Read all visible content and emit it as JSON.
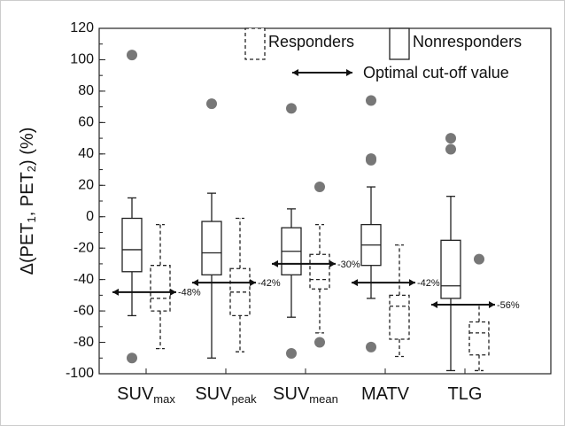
{
  "chart_data": {
    "type": "box",
    "y_label": {
      "parts": [
        "Δ(PET",
        "1",
        ", PET",
        "2",
        ") (%)"
      ],
      "subscript": [
        false,
        true,
        false,
        true,
        false
      ]
    },
    "categories": [
      {
        "text": "SUV",
        "sub": "max"
      },
      {
        "text": "SUV",
        "sub": "peak"
      },
      {
        "text": "SUV",
        "sub": "mean"
      },
      {
        "text": "MATV",
        "sub": null
      },
      {
        "text": "TLG",
        "sub": null
      }
    ],
    "series": [
      {
        "name": "Responders",
        "style": "dashed",
        "color": "#222222",
        "boxes": [
          {
            "whisker_low": -84,
            "q1": -60,
            "median": -52,
            "q3": -31,
            "whisker_high": -5
          },
          {
            "whisker_low": -86,
            "q1": -63,
            "median": -48,
            "q3": -33,
            "whisker_high": -1
          },
          {
            "whisker_low": -74,
            "q1": -46,
            "median": -40,
            "q3": -24,
            "whisker_high": -5
          },
          {
            "whisker_low": -89,
            "q1": -78,
            "median": -57,
            "q3": -50,
            "whisker_high": -18
          },
          {
            "whisker_low": -98,
            "q1": -88,
            "median": -74,
            "q3": -67,
            "whisker_high": -56
          }
        ],
        "outliers": [
          [],
          [],
          [
            19,
            -80
          ],
          [],
          [
            -27
          ]
        ]
      },
      {
        "name": "Nonresponders",
        "style": "solid",
        "color": "#222222",
        "boxes": [
          {
            "whisker_low": -63,
            "q1": -35,
            "median": -21,
            "q3": -1,
            "whisker_high": 12
          },
          {
            "whisker_low": -90,
            "q1": -37,
            "median": -23,
            "q3": -3,
            "whisker_high": 15
          },
          {
            "whisker_low": -64,
            "q1": -37,
            "median": -22,
            "q3": -7,
            "whisker_high": 5
          },
          {
            "whisker_low": -52,
            "q1": -31,
            "median": -18,
            "q3": -5,
            "whisker_high": 19
          },
          {
            "whisker_low": -98,
            "q1": -52,
            "median": -44,
            "q3": -15,
            "whisker_high": 13
          }
        ],
        "outliers": [
          [
            103,
            -90
          ],
          [
            72
          ],
          [
            69,
            -87
          ],
          [
            74,
            36,
            37,
            -83
          ],
          [
            50,
            43
          ]
        ]
      }
    ],
    "cutoff": {
      "name": "Optimal cut-off value",
      "values": [
        -48,
        -42,
        -30,
        -42,
        -56
      ],
      "value_labels": [
        "-48%",
        "-42%",
        "-30%",
        "-42%",
        "-56%"
      ]
    },
    "outlier_color": "#777777",
    "ylim": [
      -100,
      120
    ],
    "yticks": [
      -100,
      -80,
      -60,
      -40,
      -20,
      0,
      20,
      40,
      60,
      80,
      100,
      120
    ],
    "minor_tick_step": 10
  }
}
